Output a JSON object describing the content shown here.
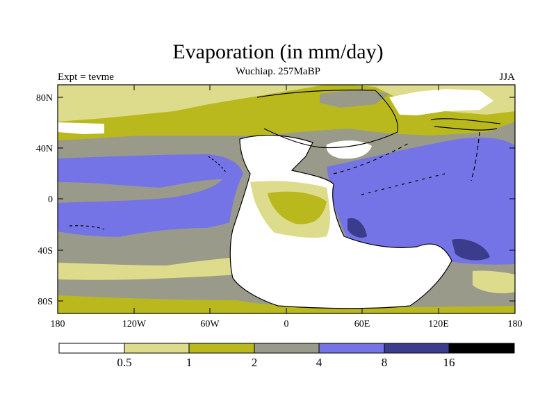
{
  "header": {
    "title": "Evaporation (in mm/day)",
    "subtitle": "Wuchiap. 257MaBP",
    "left_label": "Expt = tevme",
    "right_label": "JJA"
  },
  "map": {
    "lat_ticks": [
      "80N",
      "40N",
      "0",
      "40S",
      "80S"
    ],
    "lon_ticks": [
      "180",
      "120W",
      "60W",
      "0",
      "60E",
      "120E",
      "180"
    ],
    "colors": {
      "lt_0_5": "#ffffff",
      "c_0_5_1": "#dcdc8c",
      "c_1_2": "#b9b91e",
      "c_2_4": "#9a9a8a",
      "c_4_8": "#7474e6",
      "c_8_16": "#3c3c8c",
      "gt_16": "#000000",
      "coastline": "#000000"
    }
  },
  "colorbar": {
    "colors": [
      "#ffffff",
      "#dcdc8c",
      "#b9b91e",
      "#9a9a8a",
      "#7474e6",
      "#3c3c8c",
      "#000000"
    ],
    "labels": [
      "0.5",
      "1",
      "2",
      "4",
      "8",
      "16"
    ]
  }
}
